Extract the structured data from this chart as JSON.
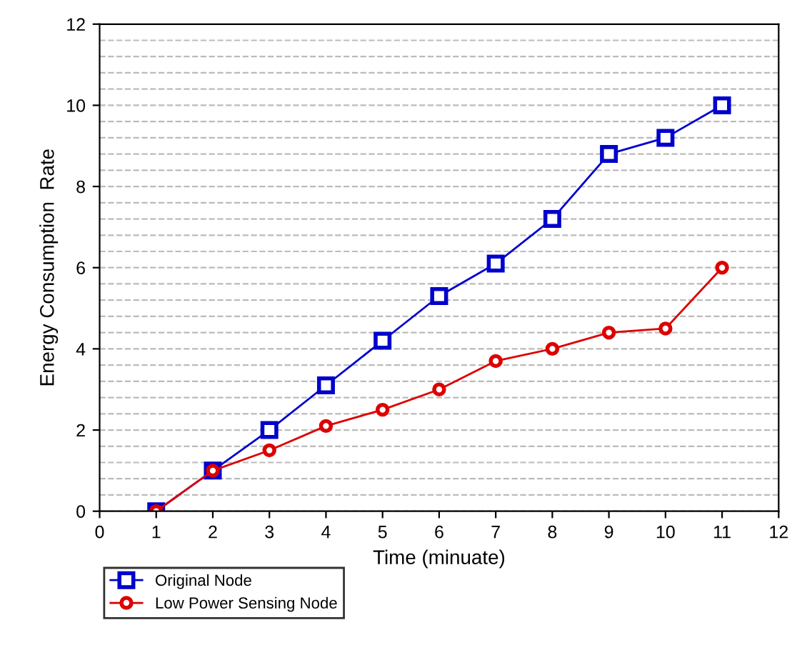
{
  "chart_data": {
    "type": "line",
    "xlabel": "Time (minuate)",
    "ylabel": "Energy Consumption  Rate",
    "x": [
      1,
      2,
      3,
      4,
      5,
      6,
      7,
      8,
      9,
      10,
      11
    ],
    "series": [
      {
        "name": "Original Node",
        "color": "#0000cc",
        "marker": "square",
        "values": [
          0,
          1,
          2,
          3.1,
          4.2,
          5.3,
          6.1,
          7.2,
          8.8,
          9.2,
          10
        ]
      },
      {
        "name": "Low Power Sensing Node",
        "color": "#dd0000",
        "marker": "circle",
        "values": [
          0,
          1,
          1.5,
          2.1,
          2.5,
          3,
          3.7,
          4,
          4.4,
          4.5,
          6
        ]
      }
    ],
    "xlim": [
      0,
      12
    ],
    "xticks": [
      0,
      1,
      2,
      3,
      4,
      5,
      6,
      7,
      8,
      9,
      10,
      11,
      12
    ],
    "ylim": [
      0,
      12
    ],
    "yticks": [
      0,
      2,
      4,
      6,
      8,
      10,
      12
    ],
    "grid": "y",
    "legend": "bottom left",
    "line_style": "solid"
  }
}
